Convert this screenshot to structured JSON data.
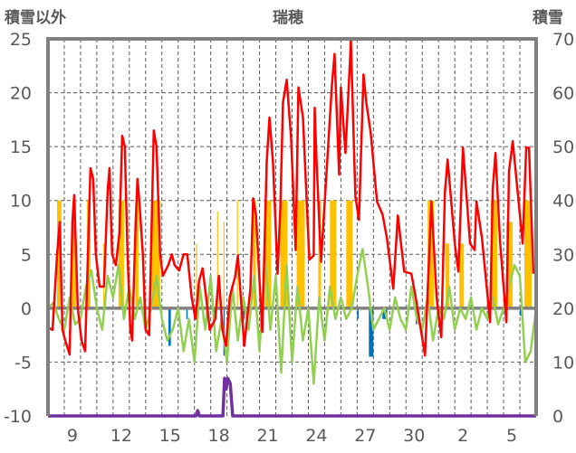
{
  "chart_data": {
    "type": "line",
    "title": "瑞穂",
    "ylabel_left": "積雪以外",
    "ylabel_right": "積雪",
    "xlim": [
      8,
      38
    ],
    "ylim_left": [
      -10,
      25
    ],
    "ylim_right": [
      0,
      70
    ],
    "yticks_left": [
      -10,
      -5,
      0,
      5,
      10,
      15,
      20,
      25
    ],
    "yticks_right": [
      0,
      10,
      20,
      30,
      40,
      50,
      60,
      70
    ],
    "xticks": [
      {
        "day": 9,
        "label": "9"
      },
      {
        "day": 12,
        "label": "12"
      },
      {
        "day": 15,
        "label": "15"
      },
      {
        "day": 18,
        "label": "18"
      },
      {
        "day": 21,
        "label": "21"
      },
      {
        "day": 24,
        "label": "24"
      },
      {
        "day": 27,
        "label": "27"
      },
      {
        "day": 30,
        "label": "30"
      },
      {
        "day": 33,
        "label": "2"
      },
      {
        "day": 36,
        "label": "5"
      }
    ],
    "grid": true,
    "colors": {
      "temperature": "#ff0000",
      "sunshine": "#ffc000",
      "precipitation": "#0070c0",
      "green_series": "#92d050",
      "snow": "#7030a0",
      "frame": "#808080"
    },
    "temperature": [
      [
        8.0,
        -1.8
      ],
      [
        8.28,
        -2
      ],
      [
        8.56,
        5
      ],
      [
        8.72,
        8
      ],
      [
        8.89,
        -2
      ],
      [
        9.06,
        -3
      ],
      [
        9.33,
        -4.3
      ],
      [
        9.5,
        8
      ],
      [
        9.61,
        10.5
      ],
      [
        9.83,
        0
      ],
      [
        10.06,
        -3
      ],
      [
        10.28,
        -4
      ],
      [
        10.61,
        13
      ],
      [
        10.78,
        12
      ],
      [
        10.94,
        5
      ],
      [
        11.17,
        2
      ],
      [
        11.44,
        2
      ],
      [
        11.67,
        11
      ],
      [
        11.78,
        13
      ],
      [
        11.94,
        5
      ],
      [
        12.17,
        4
      ],
      [
        12.39,
        7
      ],
      [
        12.56,
        16
      ],
      [
        12.72,
        15
      ],
      [
        12.89,
        5
      ],
      [
        13.06,
        -2
      ],
      [
        13.17,
        -3
      ],
      [
        13.39,
        8
      ],
      [
        13.5,
        12
      ],
      [
        13.61,
        10
      ],
      [
        13.83,
        5
      ],
      [
        14.0,
        -2
      ],
      [
        14.22,
        -2.5
      ],
      [
        14.5,
        16.5
      ],
      [
        14.67,
        15
      ],
      [
        14.89,
        5
      ],
      [
        15.06,
        3
      ],
      [
        15.39,
        4
      ],
      [
        15.61,
        5
      ],
      [
        15.78,
        4
      ],
      [
        16.06,
        3.5
      ],
      [
        16.33,
        5
      ],
      [
        16.56,
        5
      ],
      [
        16.83,
        1
      ],
      [
        17.06,
        -1
      ],
      [
        17.28,
        2.5
      ],
      [
        17.5,
        3.7
      ],
      [
        17.72,
        1
      ],
      [
        17.94,
        -2
      ],
      [
        18.28,
        -1
      ],
      [
        18.5,
        3
      ],
      [
        18.72,
        -2
      ],
      [
        18.94,
        -3.5
      ],
      [
        19.17,
        1
      ],
      [
        19.33,
        2
      ],
      [
        19.5,
        2.9
      ],
      [
        19.67,
        4.9
      ],
      [
        20.06,
        -3.5
      ],
      [
        20.44,
        1.8
      ],
      [
        20.61,
        10.2
      ],
      [
        20.78,
        8.7
      ],
      [
        21.17,
        -2.2
      ],
      [
        21.44,
        13.5
      ],
      [
        21.61,
        17.7
      ],
      [
        21.83,
        13.5
      ],
      [
        22.11,
        3.2
      ],
      [
        22.28,
        9.3
      ],
      [
        22.44,
        19.1
      ],
      [
        22.67,
        21.2
      ],
      [
        22.94,
        15.8
      ],
      [
        23.22,
        5.4
      ],
      [
        23.39,
        20.5
      ],
      [
        23.67,
        17.7
      ],
      [
        24.06,
        4.5
      ],
      [
        24.33,
        4.9
      ],
      [
        24.39,
        18.6
      ],
      [
        24.5,
        13.8
      ],
      [
        24.78,
        4.3
      ],
      [
        25.44,
        20.5
      ],
      [
        25.61,
        23.6
      ],
      [
        25.89,
        12.4
      ],
      [
        26.0,
        20.5
      ],
      [
        26.28,
        14.4
      ],
      [
        26.56,
        23
      ],
      [
        26.61,
        25
      ],
      [
        26.89,
        10.4
      ],
      [
        27.11,
        8.2
      ],
      [
        27.39,
        21.7
      ],
      [
        27.56,
        19.1
      ],
      [
        27.83,
        16.3
      ],
      [
        28.22,
        9.9
      ],
      [
        28.56,
        8.7
      ],
      [
        28.83,
        6.5
      ],
      [
        29.22,
        1.8
      ],
      [
        29.5,
        8.6
      ],
      [
        29.89,
        3.4
      ],
      [
        30.33,
        3.2
      ],
      [
        30.61,
        0.9
      ],
      [
        31.17,
        -4.4
      ],
      [
        31.56,
        9.9
      ],
      [
        31.89,
        0.9
      ],
      [
        32.17,
        -2.7
      ],
      [
        32.39,
        10.7
      ],
      [
        32.56,
        13.8
      ],
      [
        33.0,
        6
      ],
      [
        33.22,
        3.4
      ],
      [
        33.5,
        14.9
      ],
      [
        33.94,
        6
      ],
      [
        34.22,
        5.4
      ],
      [
        34.33,
        9.9
      ],
      [
        34.67,
        6.5
      ],
      [
        35.17,
        -1.3
      ],
      [
        35.33,
        11
      ],
      [
        35.5,
        14.4
      ],
      [
        35.78,
        6.2
      ],
      [
        36.17,
        -1.3
      ],
      [
        36.33,
        12.7
      ],
      [
        36.56,
        15.5
      ],
      [
        36.89,
        10.4
      ],
      [
        37.17,
        6
      ],
      [
        37.39,
        14.9
      ],
      [
        37.56,
        14.9
      ],
      [
        37.83,
        3.2
      ]
    ],
    "green_series": {
      "start": 8,
      "step": 0.3333,
      "values": [
        0,
        0.5,
        -1,
        -2,
        1,
        -1.5,
        -1,
        2,
        3.5,
        0,
        -2,
        3,
        1,
        4,
        -1,
        2,
        -1,
        1,
        -2,
        0,
        3,
        -1,
        -3,
        -2,
        0,
        -4,
        -1,
        -5,
        2,
        -2,
        3,
        -4,
        -1,
        -5,
        2,
        -3,
        1,
        -2,
        3,
        -4,
        5,
        -2,
        3,
        -6,
        4,
        -5,
        2,
        -3,
        0,
        -7,
        1,
        -3,
        2,
        -1,
        1,
        -1,
        0,
        3,
        5.5,
        2,
        -2,
        -1,
        0,
        -2,
        1,
        -1,
        -2,
        2,
        -1,
        -2,
        1,
        -3,
        0,
        -1,
        2,
        -2,
        0,
        -1,
        1,
        -2,
        0,
        -1,
        1,
        -1.5,
        0,
        2,
        4,
        3,
        -5,
        -4,
        0
      ]
    },
    "sunshine_bars": [
      [
        8.56,
        8.83,
        10
      ],
      [
        9.5,
        9.72,
        10
      ],
      [
        10.39,
        10.61,
        10
      ],
      [
        11.4,
        11.45,
        6
      ],
      [
        12.33,
        12.67,
        10
      ],
      [
        13.39,
        13.56,
        10
      ],
      [
        14.39,
        14.89,
        10
      ],
      [
        17.1,
        17.14,
        6
      ],
      [
        18.39,
        18.45,
        9
      ],
      [
        18.78,
        18.83,
        8
      ],
      [
        19.61,
        19.66,
        10
      ],
      [
        20.61,
        20.78,
        10
      ],
      [
        21.33,
        21.72,
        10
      ],
      [
        22.28,
        22.72,
        10
      ],
      [
        23.28,
        23.78,
        10
      ],
      [
        24.61,
        24.78,
        10
      ],
      [
        25.33,
        25.72,
        10
      ],
      [
        26.33,
        26.72,
        10
      ],
      [
        31.33,
        31.72,
        10
      ],
      [
        32.44,
        32.67,
        6
      ],
      [
        33.28,
        33.56,
        6
      ],
      [
        35.22,
        35.61,
        10
      ],
      [
        36.17,
        36.56,
        8
      ],
      [
        37.28,
        37.72,
        10
      ]
    ],
    "precipitation_bars": [
      [
        15.4,
        15.55,
        -3.5
      ],
      [
        16.5,
        16.58,
        -1
      ],
      [
        17.5,
        17.58,
        -1
      ],
      [
        18.2,
        18.28,
        -1
      ],
      [
        18.78,
        18.86,
        -4.4
      ],
      [
        20.0,
        20.08,
        -1
      ],
      [
        27.0,
        27.1,
        -1
      ],
      [
        27.72,
        28.0,
        -4.5
      ],
      [
        28.55,
        28.85,
        -1
      ],
      [
        30.6,
        30.66,
        -1.5
      ],
      [
        37.0,
        37.06,
        -0.7
      ]
    ],
    "snow_depth": [
      [
        8,
        0
      ],
      [
        17.1,
        0
      ],
      [
        17.2,
        1
      ],
      [
        17.3,
        0
      ],
      [
        18.75,
        0
      ],
      [
        18.85,
        7
      ],
      [
        18.95,
        5
      ],
      [
        19.05,
        7
      ],
      [
        19.2,
        6
      ],
      [
        19.35,
        0
      ],
      [
        38,
        0
      ]
    ]
  }
}
